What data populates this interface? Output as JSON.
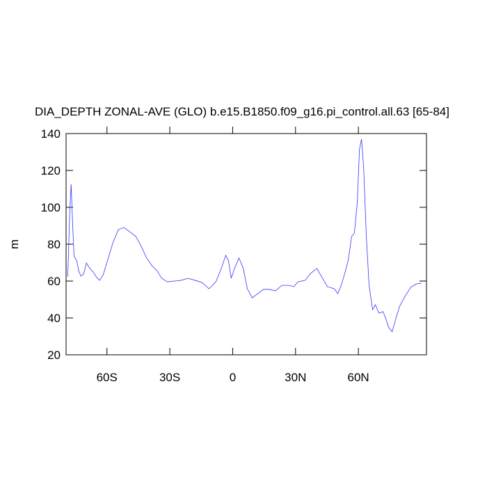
{
  "chart_data": {
    "type": "line",
    "title": "DIA_DEPTH ZONAL-AVE (GLO) b.e15.B1850.f09_g16.pi_control.all.63 [65-84]",
    "y_label": "m",
    "xlim": [
      -79.5,
      92.5
    ],
    "ylim": [
      20,
      140
    ],
    "xticks": [
      {
        "value": -60,
        "label": "60S"
      },
      {
        "value": -30,
        "label": "30S"
      },
      0,
      {
        "value": 30,
        "label": "30N"
      },
      {
        "value": 60,
        "label": "60N"
      }
    ],
    "yticks": [
      20,
      40,
      60,
      80,
      100,
      120,
      140
    ],
    "series": [
      {
        "color": "#3333ff",
        "x": [
          -78.7,
          -77.7,
          -77.1,
          -76.4,
          -75.7,
          -74.4,
          -73.4,
          -72.4,
          -71.1,
          -69.8,
          -68.4,
          -66.8,
          -65.1,
          -63.5,
          -61.8,
          -59.5,
          -57.1,
          -54.5,
          -51.8,
          -49.2,
          -46.2,
          -43.5,
          -41.2,
          -38.5,
          -35.9,
          -33.9,
          -31.2,
          -27.9,
          -24.6,
          -21.3,
          -17.9,
          -14.6,
          -11.3,
          -8,
          -5.3,
          -3.3,
          -2,
          -0.7,
          1,
          3,
          5,
          7,
          9.3,
          12,
          14.6,
          17.6,
          20.3,
          23.6,
          26.9,
          29.2,
          31.2,
          34.6,
          37.2,
          40.2,
          42.5,
          45.2,
          48.5,
          50.2,
          51.8,
          53.8,
          55.1,
          56.8,
          58.1,
          59.5,
          60.5,
          61.5,
          62.5,
          63.8,
          65.1,
          66.8,
          68.1,
          69.8,
          71.8,
          73.1,
          74.4,
          76.1,
          77.7,
          79.7,
          82.4,
          85,
          87.7,
          90
        ],
        "values": [
          62.3,
          99,
          112.5,
          91.7,
          73.6,
          71,
          65.3,
          62.6,
          64,
          69.8,
          67.2,
          65.3,
          62.3,
          60.4,
          63.4,
          72,
          81,
          88,
          89,
          86.8,
          84.2,
          78.5,
          72.8,
          68.3,
          65.3,
          61.5,
          59.6,
          60,
          60.4,
          61.5,
          60.4,
          59.2,
          55.8,
          59.6,
          67.2,
          74,
          71,
          61.5,
          67.2,
          72.5,
          67.2,
          55.8,
          50.9,
          53.2,
          55.5,
          55.5,
          54.7,
          57.7,
          57.7,
          57,
          59.6,
          60.4,
          64.2,
          66.8,
          62.3,
          57,
          55.8,
          53.2,
          57.7,
          65.3,
          71,
          84.2,
          86,
          103,
          131.3,
          137,
          121.9,
          84.2,
          57.7,
          44.5,
          47.2,
          42.6,
          43.4,
          39.6,
          35,
          32.5,
          38.9,
          46.4,
          52,
          56.6,
          58.5,
          58.9
        ]
      }
    ]
  }
}
